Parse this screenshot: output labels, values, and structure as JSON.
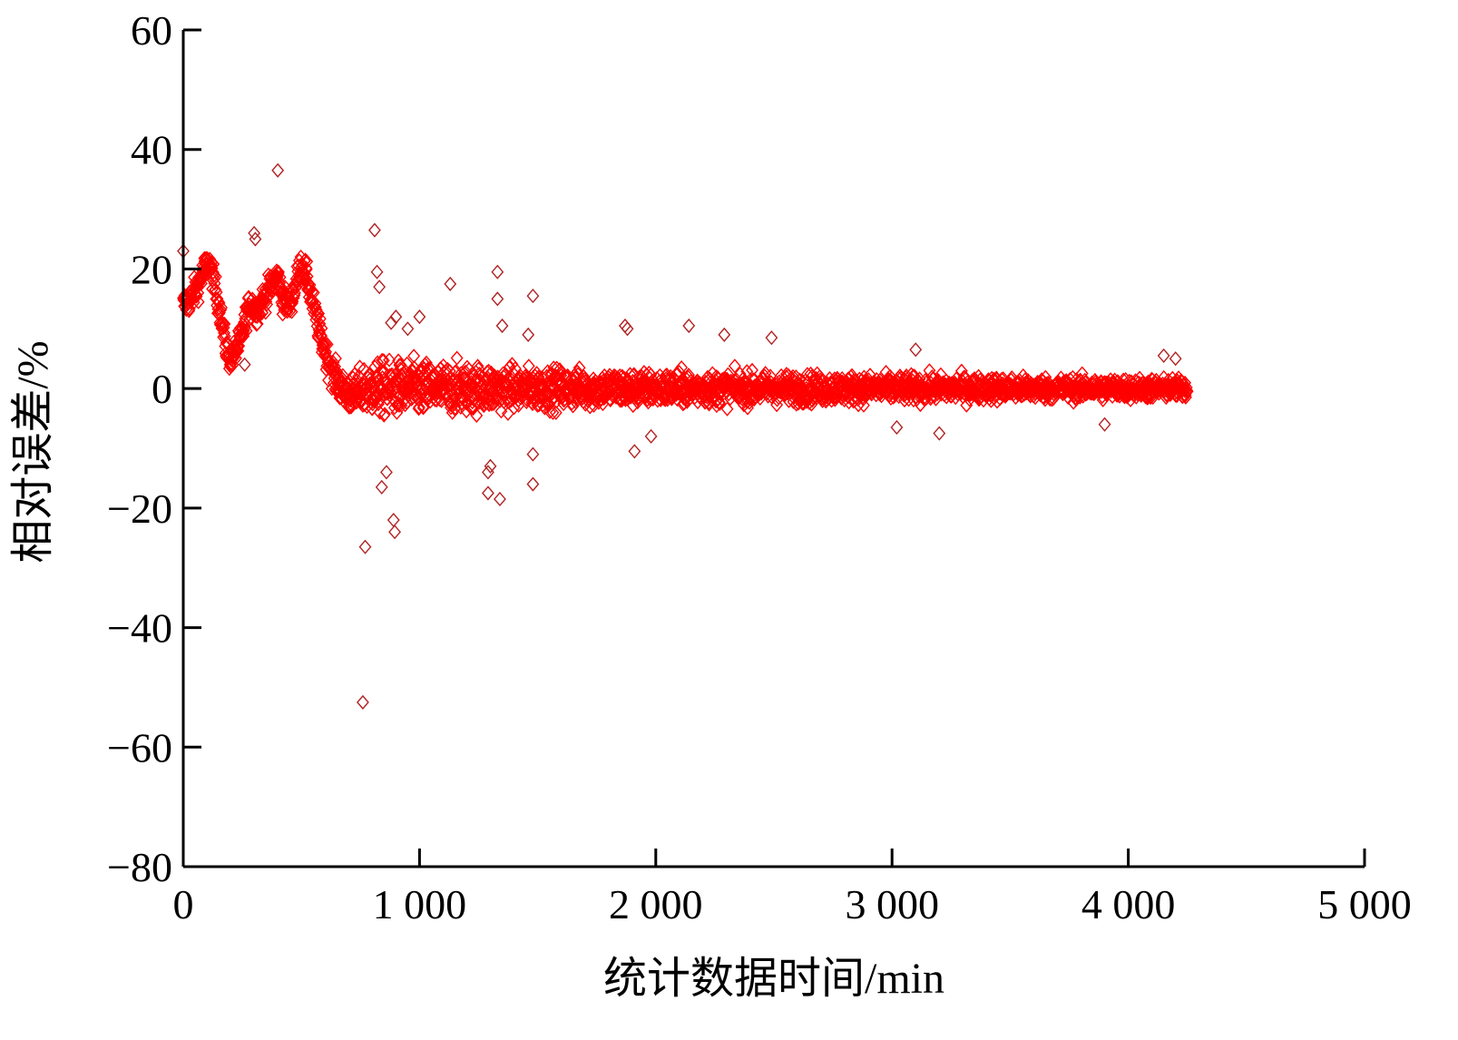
{
  "chart_data": {
    "type": "scatter",
    "title": "",
    "xlabel": "统计数据时间/min",
    "ylabel": "相对误差/%",
    "xlim": [
      0,
      5000
    ],
    "ylim": [
      -80,
      60
    ],
    "x_ticks": [
      0,
      1000,
      2000,
      3000,
      4000,
      5000
    ],
    "x_tick_labels": [
      "0",
      "1 000",
      "2 000",
      "3 000",
      "4 000",
      "5 000"
    ],
    "y_ticks": [
      -80,
      -60,
      -40,
      -20,
      0,
      20,
      40,
      60
    ],
    "y_tick_labels": [
      "−80",
      "−60",
      "−40",
      "−20",
      "0",
      "20",
      "40",
      "60"
    ],
    "grid": false,
    "legend": "none",
    "marker": "diamond",
    "marker_color": "#ff0000",
    "marker_edge_color": "#b22222",
    "series": [
      {
        "trend_points": [
          [
            0,
            14
          ],
          [
            30,
            15
          ],
          [
            60,
            17
          ],
          [
            90,
            20
          ],
          [
            110,
            21
          ],
          [
            130,
            18
          ],
          [
            160,
            12
          ],
          [
            180,
            7
          ],
          [
            200,
            5
          ],
          [
            220,
            6
          ],
          [
            250,
            9
          ],
          [
            270,
            13
          ],
          [
            290,
            14
          ],
          [
            310,
            13
          ],
          [
            340,
            15
          ],
          [
            370,
            17
          ],
          [
            400,
            19
          ],
          [
            420,
            15
          ],
          [
            450,
            14
          ],
          [
            480,
            18
          ],
          [
            500,
            21
          ],
          [
            520,
            19
          ],
          [
            550,
            14
          ],
          [
            580,
            9
          ],
          [
            610,
            5
          ],
          [
            640,
            2
          ],
          [
            670,
            0
          ],
          [
            700,
            -1
          ],
          [
            730,
            -1
          ],
          [
            760,
            0
          ],
          [
            800,
            0
          ],
          [
            4250,
            0
          ]
        ],
        "noise_envelope": [
          [
            0,
            2
          ],
          [
            500,
            2
          ],
          [
            700,
            2.5
          ],
          [
            800,
            4
          ],
          [
            1000,
            4
          ],
          [
            1500,
            3
          ],
          [
            2000,
            2.5
          ],
          [
            3000,
            2
          ],
          [
            4250,
            1.5
          ]
        ],
        "outliers": [
          [
            0,
            23
          ],
          [
            300,
            26
          ],
          [
            305,
            25
          ],
          [
            260,
            4
          ],
          [
            400,
            36.5
          ],
          [
            770,
            -26.5
          ],
          [
            760,
            -52.5
          ],
          [
            810,
            26.5
          ],
          [
            820,
            19.5
          ],
          [
            830,
            17
          ],
          [
            840,
            -16.5
          ],
          [
            860,
            -14
          ],
          [
            880,
            11
          ],
          [
            890,
            -22
          ],
          [
            895,
            -24
          ],
          [
            900,
            12
          ],
          [
            950,
            10
          ],
          [
            1000,
            12
          ],
          [
            1130,
            17.5
          ],
          [
            1290,
            -14
          ],
          [
            1300,
            -13
          ],
          [
            1290,
            -17.5
          ],
          [
            1330,
            19.5
          ],
          [
            1330,
            15
          ],
          [
            1340,
            -18.5
          ],
          [
            1350,
            10.5
          ],
          [
            1460,
            9
          ],
          [
            1480,
            15.5
          ],
          [
            1480,
            -11
          ],
          [
            1480,
            -16
          ],
          [
            1870,
            10.5
          ],
          [
            1880,
            10
          ],
          [
            1910,
            -10.5
          ],
          [
            1980,
            -8
          ],
          [
            2140,
            10.5
          ],
          [
            2290,
            9
          ],
          [
            2490,
            8.5
          ],
          [
            3020,
            -6.5
          ],
          [
            3100,
            6.5
          ],
          [
            3200,
            -7.5
          ],
          [
            3900,
            -6
          ],
          [
            4150,
            5.5
          ],
          [
            4200,
            5
          ]
        ]
      }
    ]
  }
}
